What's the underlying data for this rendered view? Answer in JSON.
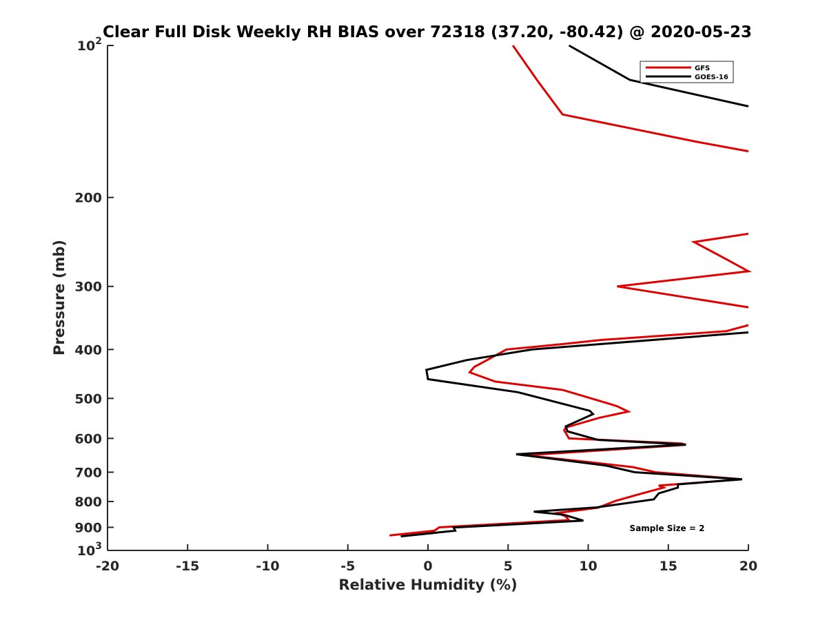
{
  "chart_data": {
    "type": "line",
    "title": "Clear Full Disk Weekly RH BIAS over 72318 (37.20, -80.42) @ 2020-05-23",
    "xlabel": "Relative Humidity (%)",
    "ylabel": "Pressure (mb)",
    "xlim": [
      -20,
      20
    ],
    "ylim": [
      100,
      1000
    ],
    "y_scale": "log",
    "y_reversed": true,
    "x_ticks": [
      "-20",
      "-15",
      "-10",
      "-5",
      "0",
      "5",
      "10",
      "15",
      "20"
    ],
    "y_ticks": [
      {
        "value": 100,
        "base": "10",
        "exp": "2"
      },
      {
        "value": 200,
        "base": "200",
        "exp": ""
      },
      {
        "value": 300,
        "base": "300",
        "exp": ""
      },
      {
        "value": 400,
        "base": "400",
        "exp": ""
      },
      {
        "value": 500,
        "base": "500",
        "exp": ""
      },
      {
        "value": 600,
        "base": "600",
        "exp": ""
      },
      {
        "value": 700,
        "base": "700",
        "exp": ""
      },
      {
        "value": 800,
        "base": "800",
        "exp": ""
      },
      {
        "value": 900,
        "base": "900",
        "exp": ""
      },
      {
        "value": 1000,
        "base": "10",
        "exp": "3"
      }
    ],
    "legend_position": "top-right",
    "grid": false,
    "annotation": "Sample Size = 2",
    "series": [
      {
        "name": "GFS",
        "color": "#e00000",
        "points": [
          [
            5.3,
            100
          ],
          [
            6.8,
            117
          ],
          [
            8.4,
            137
          ],
          [
            16.7,
            155
          ],
          [
            20,
            162
          ],
          [
            null,
            null
          ],
          [
            20,
            236
          ],
          [
            16.6,
            245
          ],
          [
            18.8,
            267
          ],
          [
            20,
            280
          ],
          [
            11.8,
            300
          ],
          [
            20,
            330
          ],
          [
            null,
            null
          ],
          [
            20,
            358
          ],
          [
            18.6,
            368
          ],
          [
            10.8,
            383
          ],
          [
            8.5,
            390
          ],
          [
            4.9,
            400
          ],
          [
            3.5,
            423
          ],
          [
            2.9,
            433
          ],
          [
            2.6,
            444
          ],
          [
            4.2,
            463
          ],
          [
            8.4,
            481
          ],
          [
            11.8,
            518
          ],
          [
            12.5,
            531
          ],
          [
            10.7,
            546
          ],
          [
            8.6,
            571
          ],
          [
            8.5,
            578
          ],
          [
            8.8,
            600
          ],
          [
            15.8,
            614
          ],
          [
            16.1,
            618
          ],
          [
            6.1,
            648
          ],
          [
            10.5,
            671
          ],
          [
            12.8,
            684
          ],
          [
            14.2,
            700
          ],
          [
            19.6,
            723
          ],
          [
            14.4,
            744
          ],
          [
            14.7,
            751
          ],
          [
            13.1,
            775
          ],
          [
            11.7,
            798
          ],
          [
            10.6,
            823
          ],
          [
            8.1,
            843
          ],
          [
            8.6,
            857
          ],
          [
            8.8,
            871
          ],
          [
            0.7,
            900
          ],
          [
            0.4,
            914
          ],
          [
            -2.4,
            934
          ]
        ]
      },
      {
        "name": "GOES-16",
        "color": "#000000",
        "points": [
          [
            8.8,
            100
          ],
          [
            12.6,
            117
          ],
          [
            20,
            132
          ],
          [
            null,
            null
          ],
          [
            20,
            370
          ],
          [
            6.5,
            400
          ],
          [
            2.4,
            420
          ],
          [
            -0.1,
            439
          ],
          [
            0,
            458
          ],
          [
            5.6,
            486
          ],
          [
            10.1,
            529
          ],
          [
            10.3,
            537
          ],
          [
            8.6,
            568
          ],
          [
            8.7,
            581
          ],
          [
            10.6,
            604
          ],
          [
            16.1,
            617
          ],
          [
            5.5,
            645
          ],
          [
            11.1,
            679
          ],
          [
            12.9,
            700
          ],
          [
            19.6,
            723
          ],
          [
            15.6,
            740
          ],
          [
            15.6,
            751
          ],
          [
            14.4,
            771
          ],
          [
            14.1,
            792
          ],
          [
            10.5,
            822
          ],
          [
            6.6,
            838
          ],
          [
            8.5,
            850
          ],
          [
            9.7,
            873
          ],
          [
            1.6,
            901
          ],
          [
            1.7,
            914
          ],
          [
            -1.7,
            938
          ]
        ]
      }
    ]
  }
}
